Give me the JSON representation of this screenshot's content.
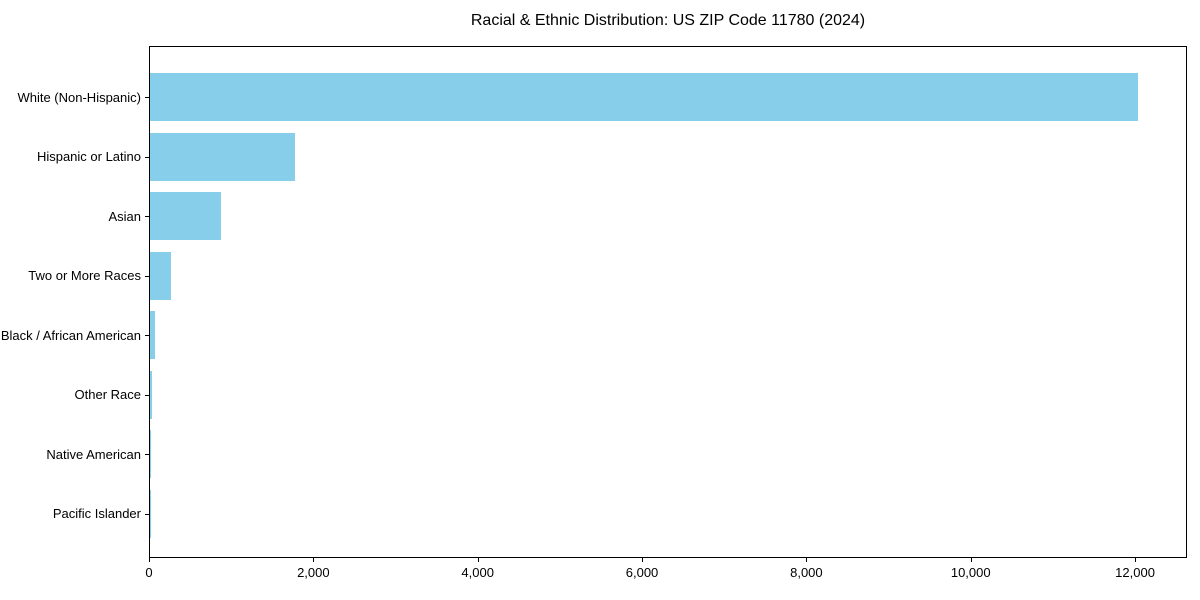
{
  "chart_data": {
    "type": "bar",
    "orientation": "horizontal",
    "title": "Racial & Ethnic Distribution: US ZIP Code 11780 (2024)",
    "xlabel": "",
    "ylabel": "",
    "categories": [
      "White (Non-Hispanic)",
      "Hispanic or Latino",
      "Asian",
      "Two or More Races",
      "Black / African American",
      "Other Race",
      "Native American",
      "Pacific Islander"
    ],
    "values": [
      12020,
      1765,
      865,
      255,
      65,
      28,
      8,
      3
    ],
    "xlim": [
      0,
      12632
    ],
    "x_ticks": [
      0,
      2000,
      4000,
      6000,
      8000,
      10000,
      12000
    ],
    "x_tick_labels": [
      "0",
      "2,000",
      "4,000",
      "6,000",
      "8,000",
      "10,000",
      "12,000"
    ],
    "bar_color": "#87CEEB",
    "axis_color": "#000000",
    "grid": false,
    "legend": null
  }
}
